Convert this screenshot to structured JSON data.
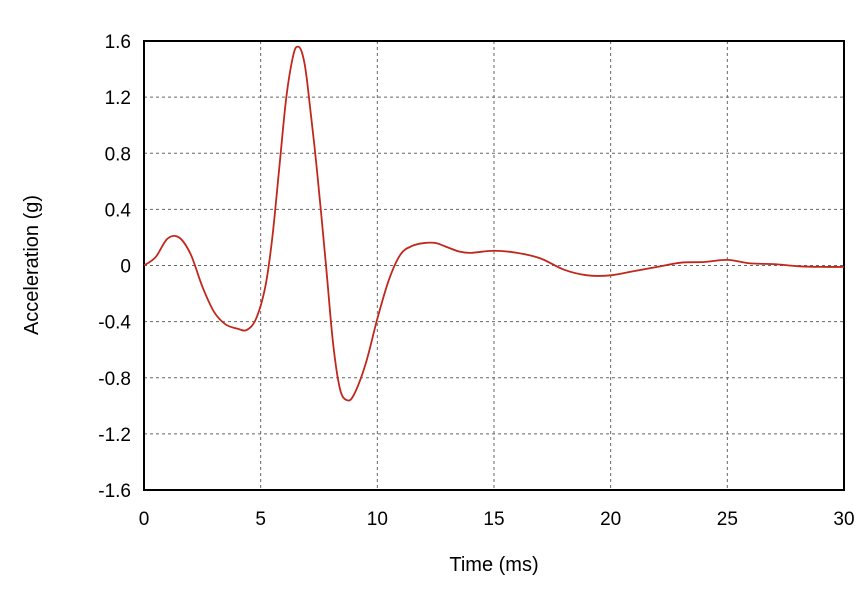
{
  "chart_data": {
    "type": "line",
    "title": "",
    "xlabel": "Time (ms)",
    "ylabel": "Acceleration (g)",
    "xlim": [
      0,
      30
    ],
    "ylim": [
      -1.6,
      1.6
    ],
    "xticks": [
      "0",
      "5",
      "10",
      "15",
      "20",
      "25",
      "30"
    ],
    "yticks": [
      "1.6",
      "1.2",
      "0.8",
      "0.4",
      "0",
      "-0.4",
      "-0.8",
      "-1.2",
      "-1.6"
    ],
    "grid": true,
    "line_color": "#c0281e",
    "series": [
      {
        "x": [
          0,
          0.5,
          1.0,
          1.5,
          2.0,
          2.5,
          3.0,
          3.5,
          4.0,
          4.4,
          4.8,
          5.2,
          5.5,
          5.8,
          6.1,
          6.4,
          6.6,
          6.8,
          7.0,
          7.4,
          7.8,
          8.1,
          8.4,
          8.7,
          9.0,
          9.5,
          10.0,
          10.5,
          11.0,
          11.5,
          12.0,
          12.5,
          13.0,
          13.5,
          14,
          15,
          16,
          17,
          18,
          19,
          20,
          21,
          22,
          23,
          24,
          25,
          26,
          27,
          28,
          29,
          30
        ],
        "y": [
          0,
          0.06,
          0.19,
          0.2,
          0.08,
          -0.15,
          -0.33,
          -0.42,
          -0.45,
          -0.46,
          -0.38,
          -0.15,
          0.2,
          0.7,
          1.2,
          1.5,
          1.56,
          1.5,
          1.3,
          0.7,
          0.0,
          -0.55,
          -0.88,
          -0.96,
          -0.92,
          -0.7,
          -0.38,
          -0.1,
          0.08,
          0.14,
          0.16,
          0.16,
          0.13,
          0.1,
          0.09,
          0.105,
          0.09,
          0.05,
          -0.03,
          -0.07,
          -0.07,
          -0.04,
          -0.01,
          0.02,
          0.025,
          0.04,
          0.015,
          0.01,
          -0.005,
          -0.01,
          -0.01
        ]
      }
    ]
  }
}
